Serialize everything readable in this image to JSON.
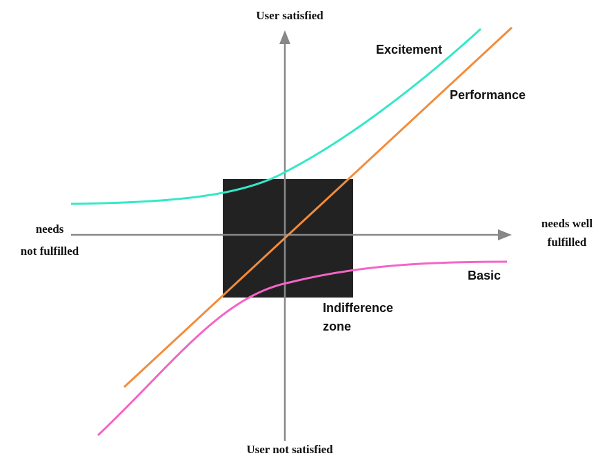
{
  "axes": {
    "top": "User satisfied",
    "bottom": "User not satisfied",
    "left": [
      "needs",
      "not fulfilled"
    ],
    "right": [
      "needs well",
      "fulfilled"
    ]
  },
  "curves": {
    "excitement": "Excitement",
    "performance": "Performance",
    "basic": "Basic"
  },
  "zone": [
    "Indifference",
    "zone"
  ]
}
